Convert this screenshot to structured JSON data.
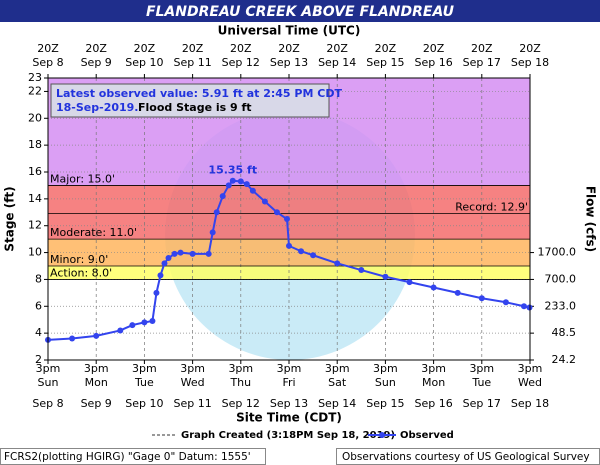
{
  "chart_data": {
    "type": "line",
    "title": "FLANDREAU CREEK ABOVE FLANDREAU",
    "x2_axis_label": "Universal Time (UTC)",
    "x_axis_label": "Site Time (CDT)",
    "y_axis_label": "Stage (ft)",
    "y2_axis_label": "Flow (cfs)",
    "ylim": [
      2,
      23
    ],
    "yticks": [
      2,
      4,
      6,
      8,
      10,
      12,
      14,
      16,
      18,
      20,
      22,
      23
    ],
    "xlim": [
      "Sep 8 15:00",
      "Sep 18 15:00"
    ],
    "xticks": [
      {
        "value": "Sep 8 15:00",
        "time": "3pm",
        "day": "Sun",
        "date": "Sep 8"
      },
      {
        "value": "Sep 9 15:00",
        "time": "3pm",
        "day": "Mon",
        "date": "Sep 9"
      },
      {
        "value": "Sep 10 15:00",
        "time": "3pm",
        "day": "Tue",
        "date": "Sep 10"
      },
      {
        "value": "Sep 11 15:00",
        "time": "3pm",
        "day": "Wed",
        "date": "Sep 11"
      },
      {
        "value": "Sep 12 15:00",
        "time": "3pm",
        "day": "Thu",
        "date": "Sep 12"
      },
      {
        "value": "Sep 13 15:00",
        "time": "3pm",
        "day": "Fri",
        "date": "Sep 13"
      },
      {
        "value": "Sep 14 15:00",
        "time": "3pm",
        "day": "Sat",
        "date": "Sep 14"
      },
      {
        "value": "Sep 15 15:00",
        "time": "3pm",
        "day": "Sun",
        "date": "Sep 15"
      },
      {
        "value": "Sep 16 15:00",
        "time": "3pm",
        "day": "Mon",
        "date": "Sep 16"
      },
      {
        "value": "Sep 17 15:00",
        "time": "3pm",
        "day": "Tue",
        "date": "Sep 17"
      },
      {
        "value": "Sep 18 15:00",
        "time": "3pm",
        "day": "Wed",
        "date": "Sep 18"
      }
    ],
    "x2ticks": [
      {
        "value": "Sep 8 15:00",
        "time": "20Z",
        "date": "Sep 8"
      },
      {
        "value": "Sep 9 15:00",
        "time": "20Z",
        "date": "Sep 9"
      },
      {
        "value": "Sep 10 15:00",
        "time": "20Z",
        "date": "Sep 10"
      },
      {
        "value": "Sep 11 15:00",
        "time": "20Z",
        "date": "Sep 11"
      },
      {
        "value": "Sep 12 15:00",
        "time": "20Z",
        "date": "Sep 12"
      },
      {
        "value": "Sep 13 15:00",
        "time": "20Z",
        "date": "Sep 13"
      },
      {
        "value": "Sep 14 15:00",
        "time": "20Z",
        "date": "Sep 14"
      },
      {
        "value": "Sep 15 15:00",
        "time": "20Z",
        "date": "Sep 15"
      },
      {
        "value": "Sep 16 15:00",
        "time": "20Z",
        "date": "Sep 16"
      },
      {
        "value": "Sep 17 15:00",
        "time": "20Z",
        "date": "Sep 17"
      },
      {
        "value": "Sep 18 15:00",
        "time": "20Z",
        "date": "Sep 18"
      }
    ],
    "flow_ticks": [
      {
        "value": 1700,
        "label": "1700.0",
        "stage": 10
      },
      {
        "value": 700,
        "label": "700.0",
        "stage": 8
      },
      {
        "value": 233,
        "label": "233.0",
        "stage": 6
      },
      {
        "value": 48.5,
        "label": "48.5",
        "stage": 4
      },
      {
        "value": 24.2,
        "label": "24.2",
        "stage": 2
      }
    ],
    "flood_categories": [
      {
        "label": "Action: 8.0'",
        "stage": 8,
        "top": 9,
        "color": "#ffff66"
      },
      {
        "label": "Minor: 9.0'",
        "stage": 9,
        "top": 11,
        "color": "#ffb55e"
      },
      {
        "label": "Moderate: 11.0'",
        "stage": 11,
        "top": 15,
        "color": "#f56c6c"
      },
      {
        "label": "Major: 15.0'",
        "stage": 15,
        "top": 23,
        "color": "#d58ef2"
      }
    ],
    "record": {
      "label": "Record: 12.9'",
      "stage": 12.9
    },
    "grid": true,
    "series": [
      {
        "name": "Observed",
        "color": "#3344ee",
        "x": [
          "Sep 8 15:00",
          "Sep 9 3:00",
          "Sep 9 15:00",
          "Sep 10 3:00",
          "Sep 10 9:00",
          "Sep 10 15:00",
          "Sep 10 19:00",
          "Sep 10 21:00",
          "Sep 10 23:00",
          "Sep 11 1:00",
          "Sep 11 3:00",
          "Sep 11 6:00",
          "Sep 11 9:00",
          "Sep 11 15:00",
          "Sep 11 23:00",
          "Sep 12 1:00",
          "Sep 12 3:00",
          "Sep 12 6:00",
          "Sep 12 9:00",
          "Sep 12 11:00",
          "Sep 12 15:00",
          "Sep 12 18:00",
          "Sep 12 21:00",
          "Sep 13 3:00",
          "Sep 13 9:00",
          "Sep 13 14:00",
          "Sep 13 15:00",
          "Sep 13 21:00",
          "Sep 14 3:00",
          "Sep 14 15:00",
          "Sep 15 3:00",
          "Sep 15 15:00",
          "Sep 16 3:00",
          "Sep 16 15:00",
          "Sep 17 3:00",
          "Sep 17 15:00",
          "Sep 18 3:00",
          "Sep 18 12:00",
          "Sep 18 14:45"
        ],
        "values": [
          3.5,
          3.6,
          3.8,
          4.2,
          4.6,
          4.8,
          4.9,
          7.0,
          8.3,
          9.2,
          9.6,
          9.9,
          10.0,
          9.9,
          9.9,
          11.5,
          13.0,
          14.2,
          15.0,
          15.35,
          15.3,
          15.1,
          14.6,
          13.8,
          13.0,
          12.5,
          10.5,
          10.1,
          9.8,
          9.2,
          8.7,
          8.2,
          7.8,
          7.4,
          7.0,
          6.6,
          6.3,
          6.0,
          5.91
        ]
      }
    ],
    "annotations": [
      {
        "text": "15.35 ft",
        "x": "Sep 12 11:00",
        "y": 15.35
      }
    ],
    "latest": "Latest observed value: 5.91 ft at 2:45 PM CDT",
    "latest_date": "18-Sep-2019.",
    "flood_stage_note": "Flood Stage is 9 ft",
    "created_note": "Graph Created (3:18PM Sep 18, 2019)",
    "datum": "FCRS2(plotting HGIRG) \"Gage 0\" Datum: 1555'",
    "credit": "Observations courtesy of US Geological Survey"
  }
}
